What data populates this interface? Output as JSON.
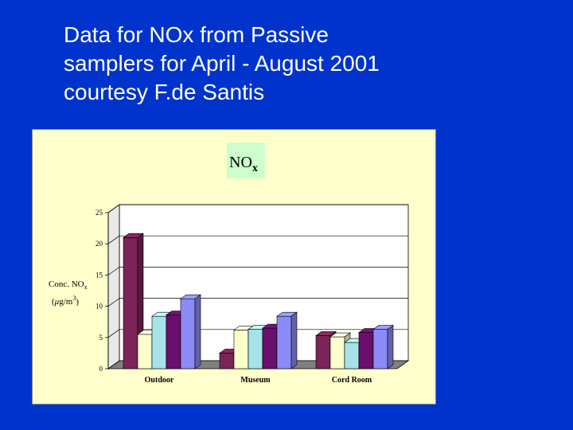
{
  "slide": {
    "title_lines": [
      "Data for NOx from Passive",
      "samplers for April - August 2001",
      "courtesy F.de Santis"
    ]
  },
  "chart_data": {
    "type": "bar",
    "title": "NO",
    "title_subscript": "x",
    "ylabel_line1": "Conc. NO",
    "ylabel_line1_sub": "x",
    "ylabel_line2_pre": "(",
    "ylabel_line2_mu": "μ",
    "ylabel_line2_unit": "g/m",
    "ylabel_line2_sup": "3",
    "ylabel_line2_post": ")",
    "ylim": [
      0,
      25
    ],
    "yticks": [
      0,
      5,
      10,
      15,
      20,
      25
    ],
    "grid": true,
    "legend": "none",
    "categories": [
      "Outdoor",
      "Museum",
      "Cord Room"
    ],
    "series": [
      {
        "color": "#7b2457",
        "values": [
          21,
          2.5,
          5.3
        ]
      },
      {
        "color": "#ffffcc",
        "values": [
          5.5,
          6.2,
          5.1
        ]
      },
      {
        "color": "#a6e3e8",
        "values": [
          8.4,
          6.3,
          4.2
        ]
      },
      {
        "color": "#6a0f6e",
        "values": [
          8.6,
          6.5,
          5.8
        ]
      },
      {
        "color": "#8b8bf7",
        "values": [
          11.2,
          8.4,
          6.3
        ]
      }
    ]
  }
}
